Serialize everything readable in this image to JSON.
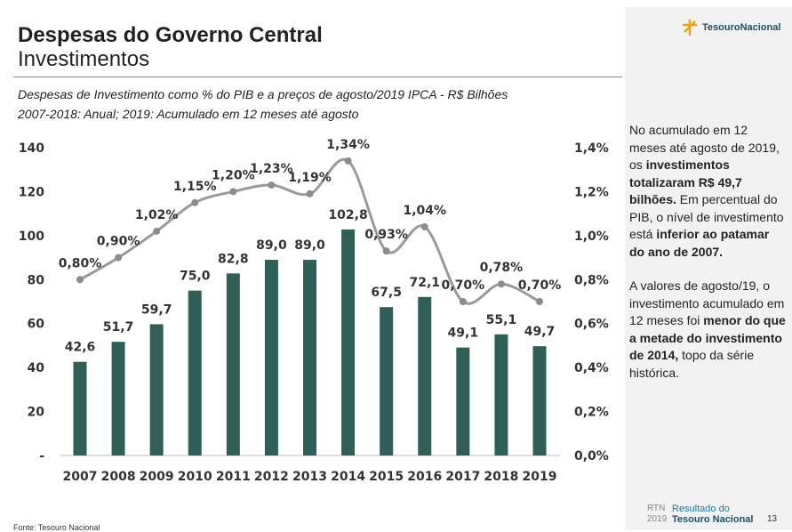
{
  "header": {
    "title": "Despesas do Governo Central",
    "subtitle": "Investimentos"
  },
  "logo": "TesouroNacional",
  "chart_data": {
    "type": "bar",
    "title": "Despesas de Investimento como % do PIB e a preços de agosto/2019 IPCA - R$ Bilhões",
    "subtitle": "2007-2018: Anual; 2019: Acumulado em 12 meses até agosto",
    "categories": [
      "2007",
      "2008",
      "2009",
      "2010",
      "2011",
      "2012",
      "2013",
      "2014",
      "2015",
      "2016",
      "2017",
      "2018",
      "2019"
    ],
    "series": [
      {
        "type": "bar",
        "color": "#2f5f56",
        "values": [
          42.6,
          51.7,
          59.7,
          75.0,
          82.8,
          89.0,
          89.0,
          102.8,
          67.5,
          72.1,
          49.1,
          55.1,
          49.7
        ],
        "value_labels": [
          "42,6",
          "51,7",
          "59,7",
          "75,0",
          "82,8",
          "89,0",
          "89,0",
          "102,8",
          "67,5",
          "72,1",
          "49,1",
          "55,1",
          "49,7"
        ]
      },
      {
        "type": "line",
        "axis": "y2",
        "color": "#9a9a9a",
        "values": [
          0.8,
          0.9,
          1.02,
          1.15,
          1.2,
          1.23,
          1.19,
          1.34,
          0.93,
          1.04,
          0.7,
          0.78,
          0.7
        ],
        "value_labels": [
          "0,80%",
          "0,90%",
          "1,02%",
          "1,15%",
          "1,20%",
          "1,23%",
          "1,19%",
          "1,34%",
          "0,93%",
          "1,04%",
          "0,70%",
          "0,78%",
          "0,70%"
        ]
      }
    ],
    "ylim": [
      0,
      140
    ],
    "yticks": [
      {
        "value": 0,
        "label": "-"
      },
      20,
      40,
      60,
      80,
      100,
      120,
      140
    ],
    "y2lim": [
      0,
      1.4
    ],
    "y2ticks": [
      {
        "value": 0,
        "label": "0,0%"
      },
      {
        "value": 0.2,
        "label": "0,2%"
      },
      {
        "value": 0.4,
        "label": "0,4%"
      },
      {
        "value": 0.6,
        "label": "0,6%"
      },
      {
        "value": 0.8,
        "label": "0,8%"
      },
      {
        "value": 1.0,
        "label": "1,0%"
      },
      {
        "value": 1.2,
        "label": "1,2%"
      },
      {
        "value": 1.4,
        "label": "1,4%"
      }
    ],
    "grid": false
  },
  "side_text": [
    [
      {
        "text": "No acumulado em 12 meses até agosto de 2019, os ",
        "bold": false
      },
      {
        "text": "investimentos totalizaram R$ 49,7 bilhões.",
        "bold": true
      },
      {
        "text": " Em percentual do PIB, o nível de investimento está ",
        "bold": false
      },
      {
        "text": "inferior ao patamar do ano de 2007.",
        "bold": true
      }
    ],
    [
      {
        "text": "A valores de agosto/19, o investimento acumulado em 12 meses foi ",
        "bold": false
      },
      {
        "text": "menor do que a metade do investimento de 2014,",
        "bold": true
      },
      {
        "text": " topo da série histórica.",
        "bold": false
      }
    ]
  ],
  "footer": {
    "source": "Fonte: Tesouro Nacional",
    "rtn": "RTN",
    "year": "2019",
    "report_line1": "Resultado do",
    "report_line2": "Tesouro Nacional",
    "page": "13"
  }
}
